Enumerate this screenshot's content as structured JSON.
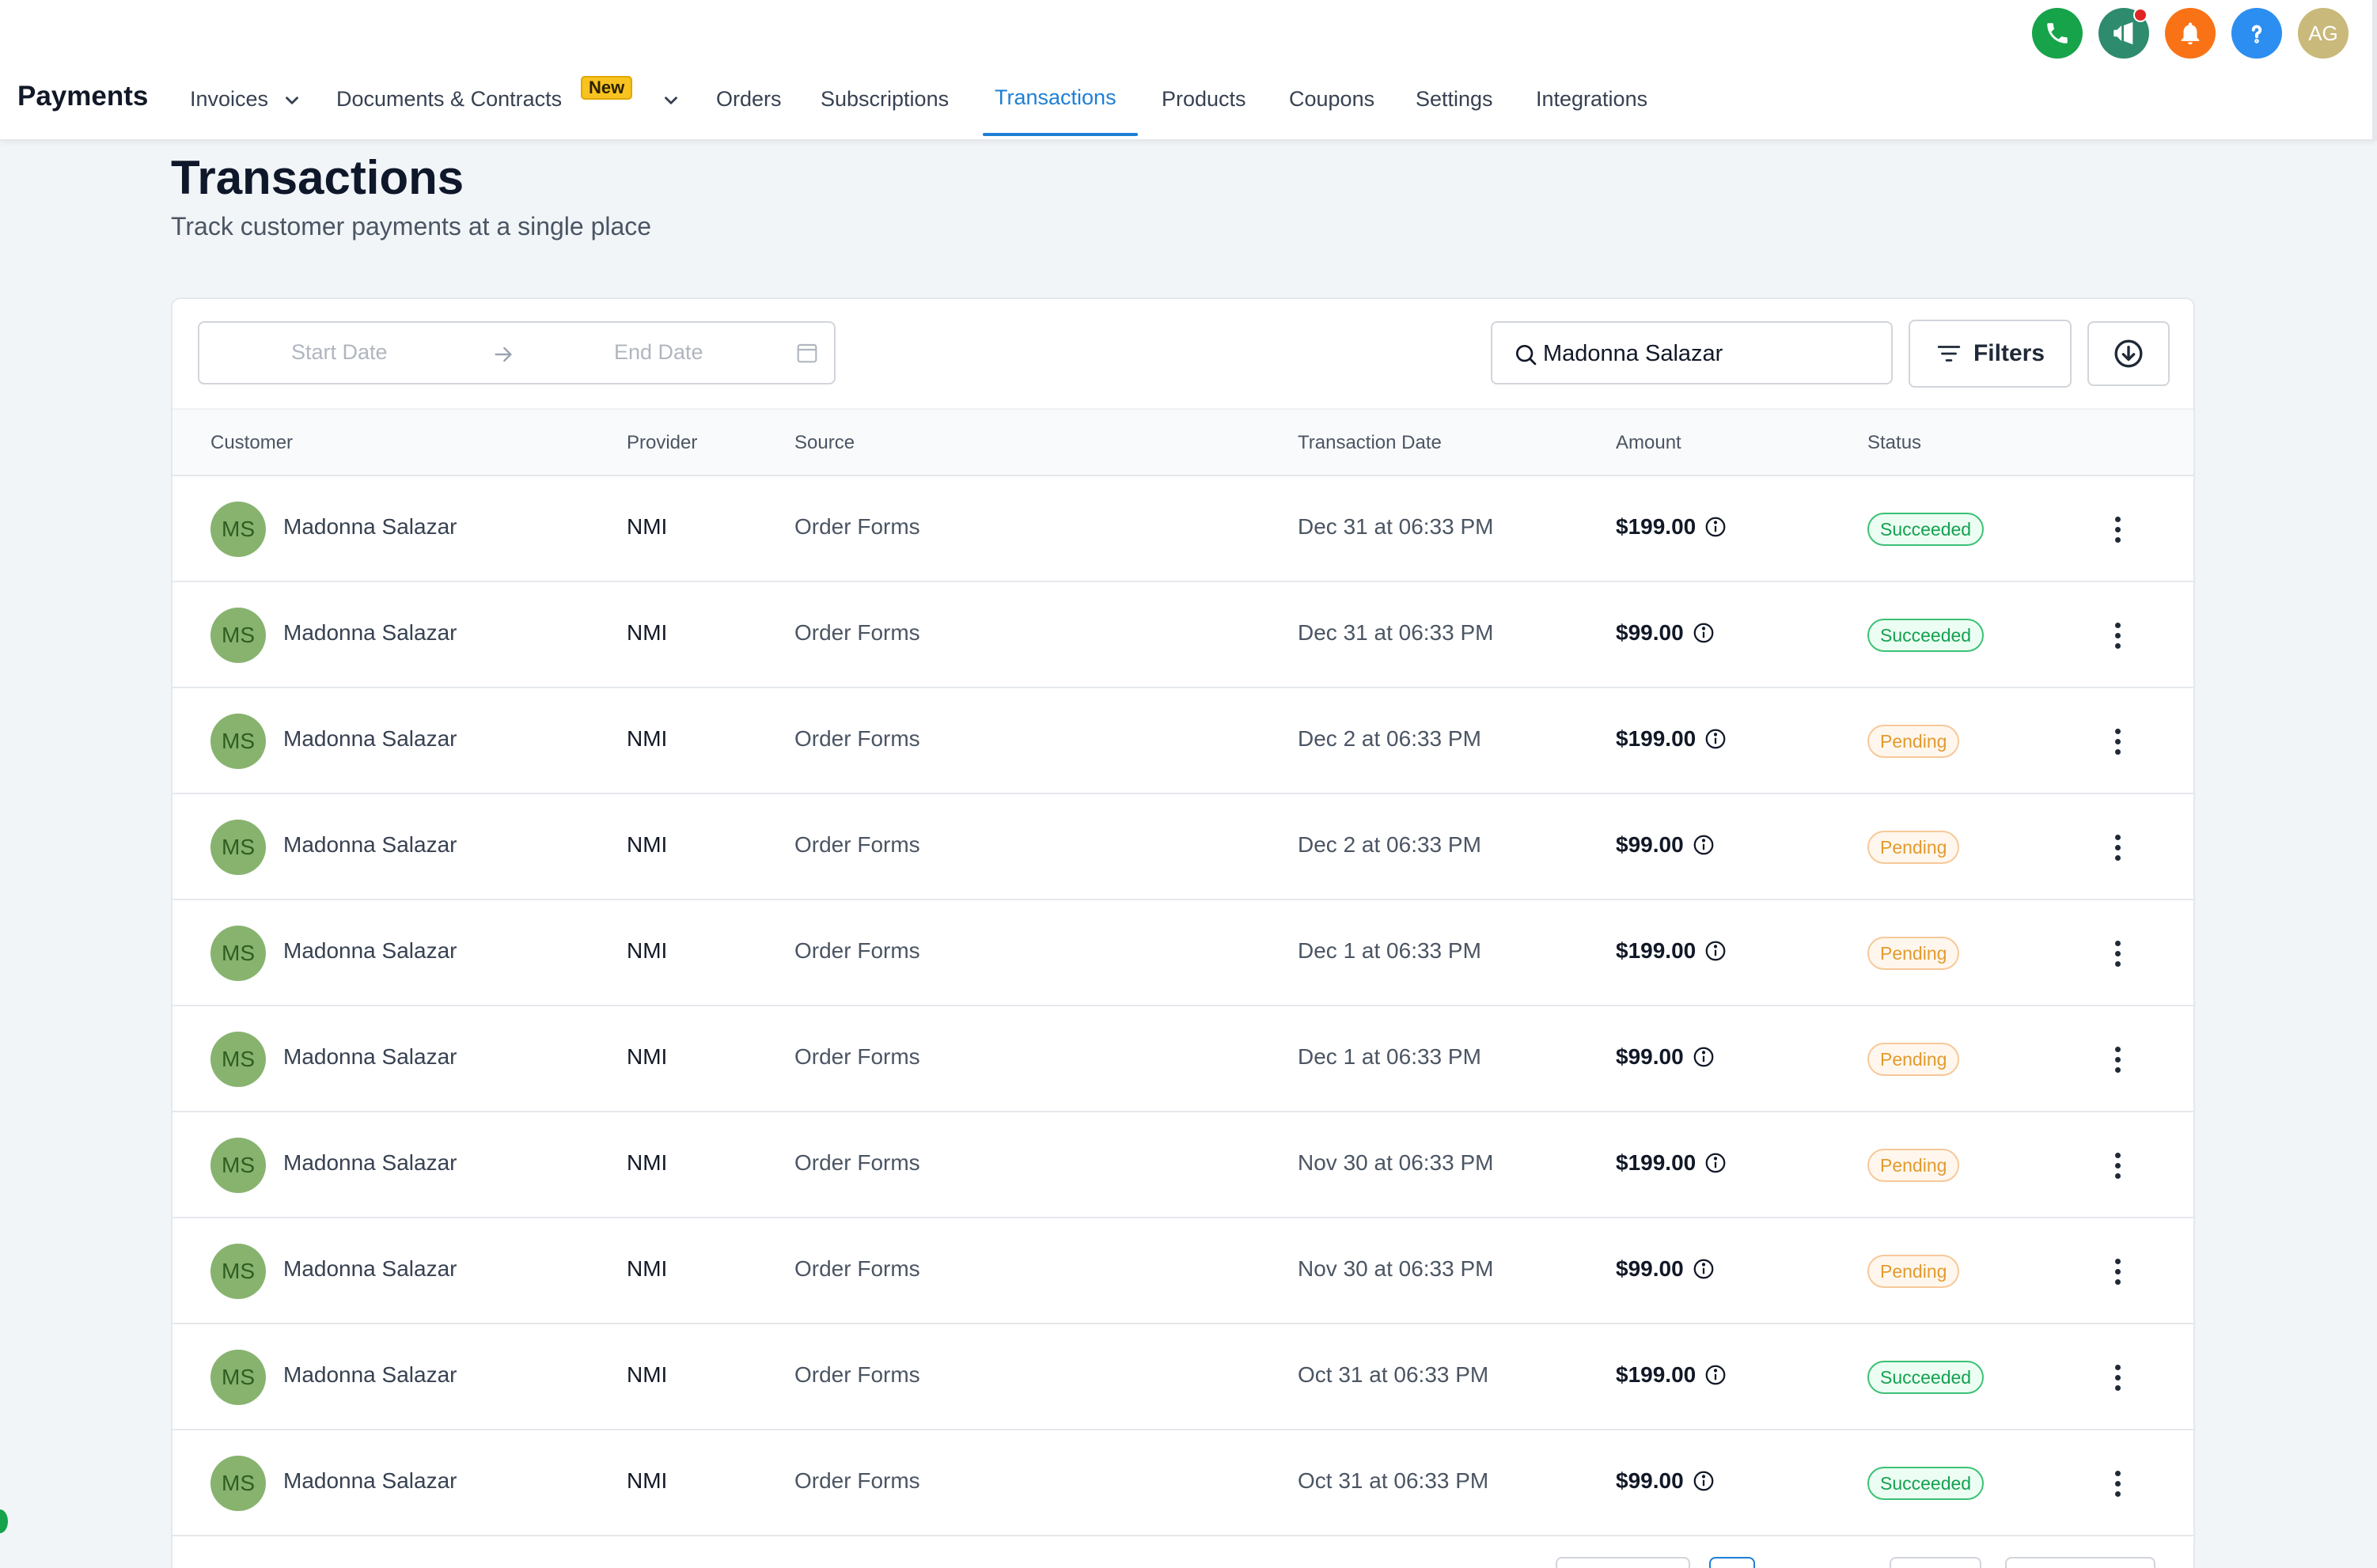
{
  "header": {
    "app_title": "Payments",
    "nav": [
      {
        "label": "Invoices",
        "has_dropdown": true,
        "active": false
      },
      {
        "label": "Documents & Contracts",
        "badge": "New",
        "has_dropdown": true,
        "active": false
      },
      {
        "label": "Orders",
        "active": false
      },
      {
        "label": "Subscriptions",
        "active": false
      },
      {
        "label": "Transactions",
        "active": true
      },
      {
        "label": "Products",
        "active": false
      },
      {
        "label": "Coupons",
        "active": false
      },
      {
        "label": "Settings",
        "active": false
      },
      {
        "label": "Integrations",
        "active": false
      }
    ],
    "top_icons": [
      {
        "name": "phone-icon",
        "color": "#16a34a"
      },
      {
        "name": "megaphone-icon",
        "color": "#2e8b6e"
      },
      {
        "name": "bell-icon",
        "color": "#f97316"
      },
      {
        "name": "help-icon",
        "color": "#2c8ef0"
      }
    ],
    "user_initials": "AG"
  },
  "page": {
    "title": "Transactions",
    "subtitle": "Track customer payments at a single place"
  },
  "toolbar": {
    "start_date_placeholder": "Start Date",
    "end_date_placeholder": "End Date",
    "search_value": "Madonna Salazar",
    "filters_label": "Filters"
  },
  "table": {
    "columns": [
      "Customer",
      "Provider",
      "Source",
      "Transaction Date",
      "Amount",
      "Status"
    ],
    "rows": [
      {
        "initials": "MS",
        "customer": "Madonna Salazar",
        "provider": "NMI",
        "source": "Order Forms",
        "date": "Dec 31 at 06:33 PM",
        "amount": "$199.00",
        "status": "Succeeded"
      },
      {
        "initials": "MS",
        "customer": "Madonna Salazar",
        "provider": "NMI",
        "source": "Order Forms",
        "date": "Dec 31 at 06:33 PM",
        "amount": "$99.00",
        "status": "Succeeded"
      },
      {
        "initials": "MS",
        "customer": "Madonna Salazar",
        "provider": "NMI",
        "source": "Order Forms",
        "date": "Dec 2 at 06:33 PM",
        "amount": "$199.00",
        "status": "Pending"
      },
      {
        "initials": "MS",
        "customer": "Madonna Salazar",
        "provider": "NMI",
        "source": "Order Forms",
        "date": "Dec 2 at 06:33 PM",
        "amount": "$99.00",
        "status": "Pending"
      },
      {
        "initials": "MS",
        "customer": "Madonna Salazar",
        "provider": "NMI",
        "source": "Order Forms",
        "date": "Dec 1 at 06:33 PM",
        "amount": "$199.00",
        "status": "Pending"
      },
      {
        "initials": "MS",
        "customer": "Madonna Salazar",
        "provider": "NMI",
        "source": "Order Forms",
        "date": "Dec 1 at 06:33 PM",
        "amount": "$99.00",
        "status": "Pending"
      },
      {
        "initials": "MS",
        "customer": "Madonna Salazar",
        "provider": "NMI",
        "source": "Order Forms",
        "date": "Nov 30 at 06:33 PM",
        "amount": "$199.00",
        "status": "Pending"
      },
      {
        "initials": "MS",
        "customer": "Madonna Salazar",
        "provider": "NMI",
        "source": "Order Forms",
        "date": "Nov 30 at 06:33 PM",
        "amount": "$99.00",
        "status": "Pending"
      },
      {
        "initials": "MS",
        "customer": "Madonna Salazar",
        "provider": "NMI",
        "source": "Order Forms",
        "date": "Oct 31 at 06:33 PM",
        "amount": "$199.00",
        "status": "Succeeded"
      },
      {
        "initials": "MS",
        "customer": "Madonna Salazar",
        "provider": "NMI",
        "source": "Order Forms",
        "date": "Oct 31 at 06:33 PM",
        "amount": "$99.00",
        "status": "Succeeded"
      }
    ]
  },
  "colors": {
    "accent": "#1e7fd6",
    "succeeded": "#14a150",
    "pending": "#e39a2e",
    "avatar": "#88b36f"
  }
}
